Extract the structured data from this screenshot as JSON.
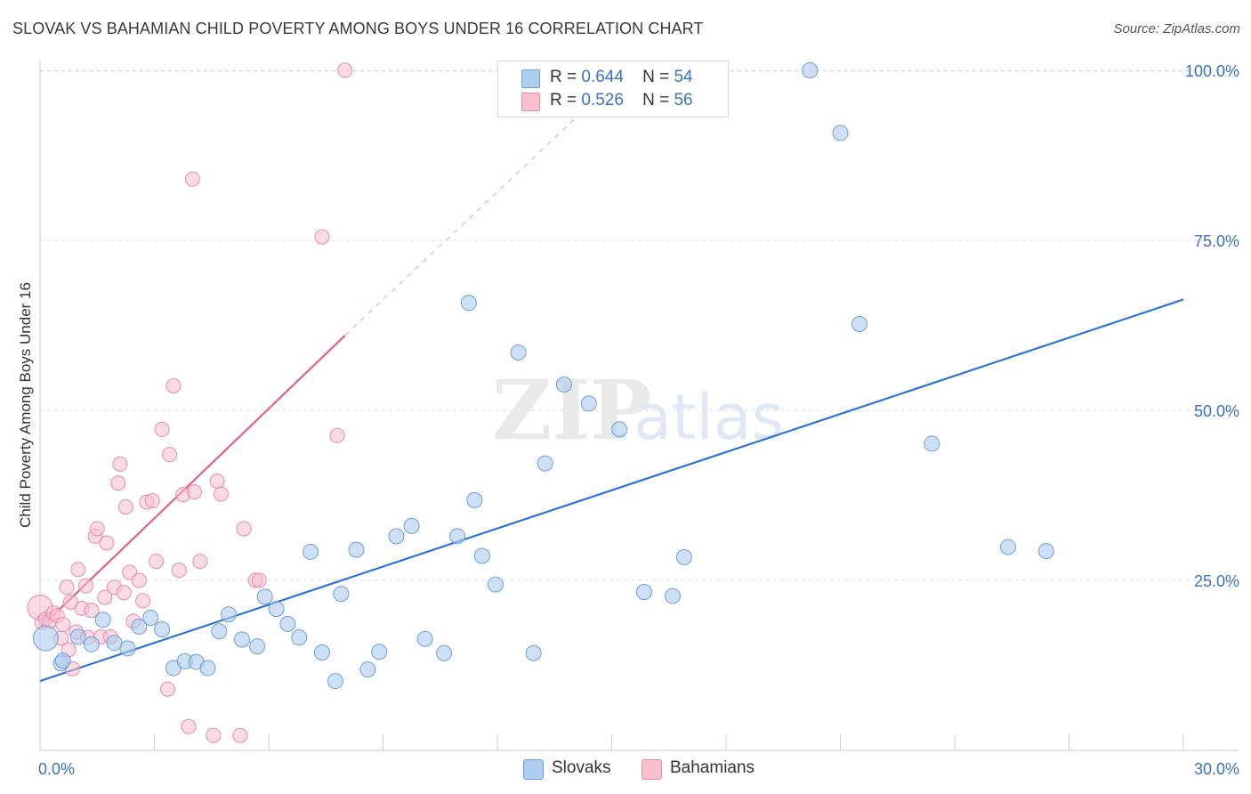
{
  "header": {
    "title": "SLOVAK VS BAHAMIAN CHILD POVERTY AMONG BOYS UNDER 16 CORRELATION CHART",
    "source": "Source: ZipAtlas.com"
  },
  "watermark": {
    "zip": "ZIP",
    "atlas": "atlas"
  },
  "legend": {
    "rows": [
      {
        "r_label": "R =",
        "r_value": "0.644",
        "n_label": "N =",
        "n_value": "54",
        "color": "#aecbf0"
      },
      {
        "r_label": "R =",
        "r_value": "0.526",
        "n_label": "N =",
        "n_value": "56",
        "color": "#f7c0cf"
      }
    ]
  },
  "bottom_legend": {
    "items": [
      {
        "label": "Slovaks",
        "color": "#aecbf0"
      },
      {
        "label": "Bahamians",
        "color": "#f7c0cf"
      }
    ]
  },
  "colors": {
    "slovak_fill": "#aecbf0",
    "slovak_stroke": "#6d9fdb",
    "slovak_line": "#2f74d0",
    "bahamian_fill": "#f7c0cf",
    "bahamian_stroke": "#e88aa6",
    "bahamian_line": "#e0608a",
    "tick_label": "#3a72c4",
    "grid": "#dcdcdc"
  },
  "chart_data": {
    "type": "scatter",
    "title": "SLOVAK VS BAHAMIAN CHILD POVERTY AMONG BOYS UNDER 16 CORRELATION CHART",
    "xlabel": "",
    "ylabel": "Child Poverty Among Boys Under 16",
    "xlim": [
      0,
      30
    ],
    "ylim": [
      0,
      100
    ],
    "x_tick_labels": [
      "0.0%",
      "30.0%"
    ],
    "y_ticks": [
      25,
      50,
      75,
      100
    ],
    "y_tick_labels": [
      "25.0%",
      "50.0%",
      "75.0%",
      "100.0%"
    ],
    "grid": true,
    "series": [
      {
        "name": "Slovaks",
        "points": [
          [
            0.15,
            16.5
          ],
          [
            0.55,
            12.8
          ],
          [
            0.6,
            13.2
          ],
          [
            1.0,
            16.7
          ],
          [
            1.35,
            15.6
          ],
          [
            1.65,
            19.2
          ],
          [
            1.95,
            15.8
          ],
          [
            2.3,
            15.0
          ],
          [
            2.6,
            18.2
          ],
          [
            2.9,
            19.5
          ],
          [
            3.2,
            17.8
          ],
          [
            3.5,
            12.1
          ],
          [
            3.8,
            13.1
          ],
          [
            4.1,
            13.0
          ],
          [
            4.4,
            12.1
          ],
          [
            4.7,
            17.5
          ],
          [
            4.95,
            20.0
          ],
          [
            5.3,
            16.3
          ],
          [
            5.7,
            15.3
          ],
          [
            5.9,
            22.6
          ],
          [
            6.2,
            20.8
          ],
          [
            6.5,
            18.6
          ],
          [
            6.8,
            16.6
          ],
          [
            7.1,
            29.2
          ],
          [
            7.4,
            14.4
          ],
          [
            7.75,
            10.2
          ],
          [
            7.9,
            23.0
          ],
          [
            8.3,
            29.5
          ],
          [
            8.6,
            11.9
          ],
          [
            8.9,
            14.5
          ],
          [
            9.35,
            31.5
          ],
          [
            9.75,
            33.0
          ],
          [
            10.1,
            16.4
          ],
          [
            10.6,
            14.3
          ],
          [
            10.95,
            31.5
          ],
          [
            11.25,
            65.8
          ],
          [
            11.4,
            36.8
          ],
          [
            11.6,
            28.6
          ],
          [
            11.95,
            24.4
          ],
          [
            12.55,
            58.5
          ],
          [
            12.95,
            14.3
          ],
          [
            13.25,
            42.2
          ],
          [
            13.75,
            53.8
          ],
          [
            14.4,
            51.0
          ],
          [
            15.2,
            47.2
          ],
          [
            15.85,
            23.3
          ],
          [
            16.6,
            22.7
          ],
          [
            16.9,
            28.4
          ],
          [
            20.2,
            100.0
          ],
          [
            21.0,
            90.8
          ],
          [
            21.5,
            62.7
          ],
          [
            23.4,
            45.1
          ],
          [
            25.4,
            29.9
          ],
          [
            26.4,
            29.3
          ]
        ],
        "trend": {
          "x": [
            0,
            30
          ],
          "y": [
            10.2,
            66.3
          ]
        }
      },
      {
        "name": "Bahamians",
        "points": [
          [
            0.0,
            21.0
          ],
          [
            0.05,
            18.8
          ],
          [
            0.15,
            19.3
          ],
          [
            0.25,
            19.0
          ],
          [
            0.35,
            20.2
          ],
          [
            0.45,
            19.8
          ],
          [
            0.55,
            16.5
          ],
          [
            0.6,
            18.5
          ],
          [
            0.7,
            24.0
          ],
          [
            0.75,
            14.8
          ],
          [
            0.8,
            21.8
          ],
          [
            0.85,
            12.0
          ],
          [
            0.95,
            17.4
          ],
          [
            1.0,
            26.6
          ],
          [
            1.1,
            20.9
          ],
          [
            1.2,
            24.2
          ],
          [
            1.25,
            16.6
          ],
          [
            1.35,
            20.6
          ],
          [
            1.45,
            31.5
          ],
          [
            1.5,
            32.6
          ],
          [
            1.6,
            16.7
          ],
          [
            1.7,
            22.5
          ],
          [
            1.75,
            30.5
          ],
          [
            1.85,
            16.7
          ],
          [
            1.95,
            24.0
          ],
          [
            2.05,
            39.3
          ],
          [
            2.1,
            42.1
          ],
          [
            2.2,
            23.2
          ],
          [
            2.25,
            35.8
          ],
          [
            2.35,
            26.2
          ],
          [
            2.45,
            19.0
          ],
          [
            2.6,
            25.0
          ],
          [
            2.7,
            22.0
          ],
          [
            2.8,
            36.5
          ],
          [
            2.95,
            36.7
          ],
          [
            3.05,
            27.8
          ],
          [
            3.2,
            47.2
          ],
          [
            3.35,
            9.0
          ],
          [
            3.4,
            43.5
          ],
          [
            3.5,
            53.6
          ],
          [
            3.65,
            26.5
          ],
          [
            3.75,
            37.6
          ],
          [
            3.9,
            3.5
          ],
          [
            4.0,
            84.0
          ],
          [
            4.05,
            38.0
          ],
          [
            4.2,
            27.8
          ],
          [
            4.55,
            2.2
          ],
          [
            4.65,
            39.6
          ],
          [
            4.75,
            37.7
          ],
          [
            5.25,
            2.2
          ],
          [
            5.35,
            32.6
          ],
          [
            5.65,
            25.0
          ],
          [
            5.75,
            25.0
          ],
          [
            7.4,
            75.5
          ],
          [
            7.8,
            46.3
          ],
          [
            8.0,
            100.0
          ]
        ],
        "trend": {
          "x": [
            0,
            8.0
          ],
          "y": [
            18.0,
            61.0
          ]
        },
        "trend_extension": {
          "x": [
            8.0,
            15.0
          ],
          "y": [
            61.0,
            98.0
          ]
        }
      }
    ]
  }
}
